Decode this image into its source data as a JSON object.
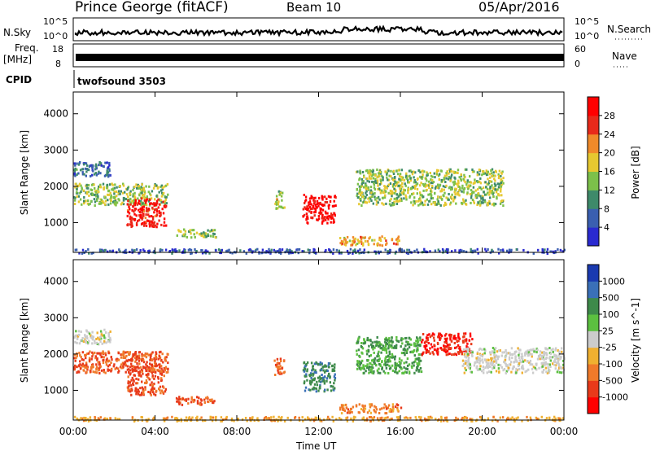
{
  "header": {
    "station": "Prince George (fitACF)",
    "beam": "Beam 10",
    "date": "05/Apr/2016"
  },
  "strip": {
    "nsky_label": "N.Sky",
    "nsky_ticks": [
      "10^5",
      "10^0"
    ],
    "nsearch_label": "N.Search",
    "nsearch_ticks": [
      "10^5",
      "10^0"
    ],
    "freq_label_1": "Freq.",
    "freq_label_2": "[MHz]",
    "freq_ticks": [
      "18",
      "8"
    ],
    "nave_label": "Nave",
    "nave_ticks": [
      "60",
      "0"
    ],
    "cpid_label": "CPID",
    "cpid_value": "twofsound 3503"
  },
  "x_axis": {
    "label": "Time UT",
    "ticks": [
      "00:00",
      "04:00",
      "08:00",
      "12:00",
      "16:00",
      "20:00",
      "00:00"
    ]
  },
  "chart_data": [
    {
      "type": "heatmap",
      "ylabel": "Slant Range [km]",
      "xlabel": "Time UT",
      "x_range_hours": [
        0,
        24
      ],
      "ylim": [
        180,
        4600
      ],
      "yticks": [
        1000,
        2000,
        3000,
        4000
      ],
      "colorbar": {
        "label": "Power [dB]",
        "ticks": [
          "4",
          "8",
          "12",
          "16",
          "20",
          "24",
          "28"
        ],
        "colors": [
          "#2a2ad0",
          "#3a5fb0",
          "#3e8a6a",
          "#7cc04a",
          "#e6c830",
          "#f08a2a",
          "#e82a1a",
          "#ff0000"
        ]
      },
      "scatter_regions": [
        {
          "t": [
            0.0,
            4.6
          ],
          "r": [
            1500,
            2100
          ],
          "level": 0.45
        },
        {
          "t": [
            2.6,
            4.5
          ],
          "r": [
            900,
            1700
          ],
          "level": 0.95
        },
        {
          "t": [
            0.0,
            1.8
          ],
          "r": [
            2300,
            2700
          ],
          "level": 0.2
        },
        {
          "t": [
            5.0,
            7.0
          ],
          "r": [
            620,
            850
          ],
          "level": 0.45
        },
        {
          "t": [
            11.2,
            12.8
          ],
          "r": [
            1000,
            1800
          ],
          "level": 1.0
        },
        {
          "t": [
            13.8,
            21.0
          ],
          "r": [
            1500,
            2500
          ],
          "level": 0.45
        },
        {
          "t": [
            13.0,
            16.0
          ],
          "r": [
            400,
            650
          ],
          "level": 0.65
        },
        {
          "t": [
            9.8,
            10.3
          ],
          "r": [
            1400,
            1900
          ],
          "level": 0.5
        },
        {
          "t": [
            0.0,
            24.0
          ],
          "r": [
            180,
            300
          ],
          "level": 0.1
        }
      ]
    },
    {
      "type": "heatmap",
      "ylabel": "Slant Range [km]",
      "xlabel": "Time UT",
      "x_range_hours": [
        0,
        24
      ],
      "ylim": [
        180,
        4600
      ],
      "yticks": [
        1000,
        2000,
        3000,
        4000
      ],
      "colorbar": {
        "label": "Velocity [m s^-1]",
        "ticks": [
          "1000",
          "500",
          "100",
          "25",
          "-25",
          "-100",
          "-500",
          "-1000"
        ],
        "colors": [
          "#1a3ab0",
          "#3a70b8",
          "#3e8a4a",
          "#5cc040",
          "#cccccc",
          "#f0b030",
          "#f07a2a",
          "#e83a1a",
          "#ff0000"
        ]
      },
      "scatter_regions": [
        {
          "t": [
            0.0,
            4.6
          ],
          "r": [
            1500,
            2100
          ],
          "level": -0.65
        },
        {
          "t": [
            2.6,
            4.5
          ],
          "r": [
            900,
            1700
          ],
          "level": -0.7
        },
        {
          "t": [
            0.0,
            1.8
          ],
          "r": [
            2300,
            2700
          ],
          "level": 0.0
        },
        {
          "t": [
            5.0,
            7.0
          ],
          "r": [
            620,
            850
          ],
          "level": -0.7
        },
        {
          "t": [
            11.2,
            12.8
          ],
          "r": [
            1000,
            1800
          ],
          "level": 0.55
        },
        {
          "t": [
            13.8,
            17.0
          ],
          "r": [
            1500,
            2500
          ],
          "level": 0.4
        },
        {
          "t": [
            17.0,
            19.5
          ],
          "r": [
            2000,
            2600
          ],
          "level": -0.85
        },
        {
          "t": [
            19.0,
            24.0
          ],
          "r": [
            1500,
            2200
          ],
          "level": 0.0
        },
        {
          "t": [
            13.0,
            16.0
          ],
          "r": [
            400,
            650
          ],
          "level": -0.5
        },
        {
          "t": [
            9.8,
            10.3
          ],
          "r": [
            1400,
            1900
          ],
          "level": -0.6
        },
        {
          "t": [
            0.0,
            24.0
          ],
          "r": [
            180,
            300
          ],
          "level": -0.3
        }
      ]
    }
  ]
}
